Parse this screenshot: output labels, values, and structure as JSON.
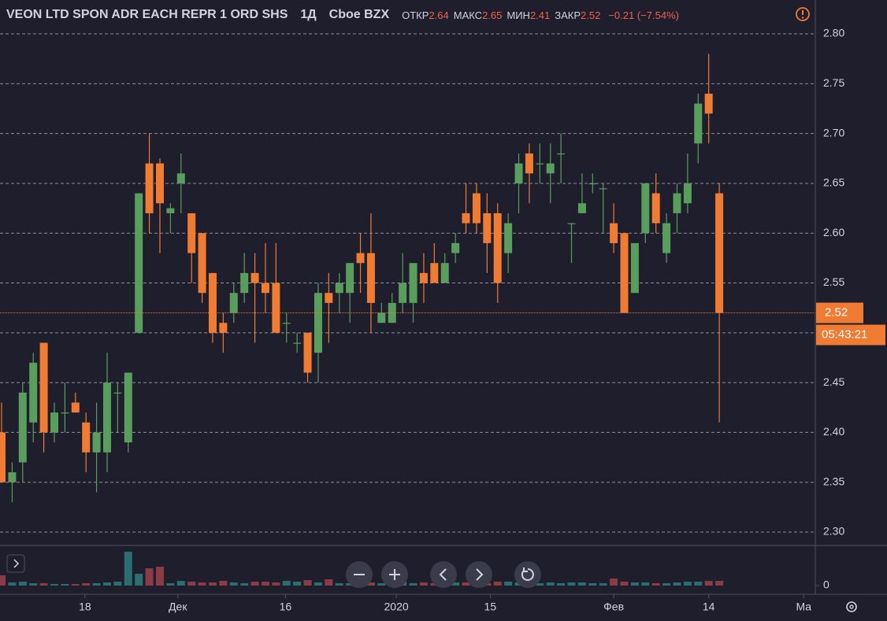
{
  "header": {
    "symbol": "VEON LTD SPON ADR EACH REPR 1 ORD SHS",
    "interval": "1Д",
    "exchange": "Cboe BZX",
    "ohlc": [
      {
        "label": "ОТКР",
        "value": 2.64
      },
      {
        "label": "МАКС",
        "value": 2.65
      },
      {
        "label": "МИН",
        "value": 2.41
      },
      {
        "label": "ЗАКР",
        "value": 2.52
      }
    ],
    "change": "−0.21 (−7.54%)"
  },
  "chart_data": {
    "type": "candlestick",
    "open": [
      2.4,
      2.35,
      2.37,
      2.41,
      2.49,
      2.4,
      2.42,
      2.43,
      2.41,
      2.38,
      2.38,
      2.44,
      2.39,
      2.5,
      2.67,
      2.67,
      2.62,
      2.65,
      2.62,
      2.6,
      2.56,
      2.51,
      2.52,
      2.54,
      2.56,
      2.55,
      2.55,
      2.51,
      2.49,
      2.5,
      2.48,
      2.54,
      2.54,
      2.54,
      2.58,
      2.58,
      2.51,
      2.51,
      2.53,
      2.53,
      2.56,
      2.57,
      2.55,
      2.58,
      2.62,
      2.64,
      2.62,
      2.62,
      2.58,
      2.65,
      2.68,
      2.67,
      2.66,
      2.68,
      2.61,
      2.62,
      2.65,
      2.645,
      2.61,
      2.6,
      2.54,
      2.6,
      2.64,
      2.58,
      2.62,
      2.63,
      2.69,
      2.74,
      2.64
    ],
    "high": [
      2.43,
      2.37,
      2.45,
      2.48,
      2.49,
      2.43,
      2.45,
      2.44,
      2.42,
      2.43,
      2.48,
      2.45,
      2.46,
      2.64,
      2.7,
      2.675,
      2.63,
      2.68,
      2.62,
      2.6,
      2.56,
      2.52,
      2.55,
      2.58,
      2.58,
      2.59,
      2.59,
      2.52,
      2.5,
      2.5,
      2.55,
      2.56,
      2.56,
      2.57,
      2.6,
      2.62,
      2.53,
      2.54,
      2.58,
      2.57,
      2.58,
      2.59,
      2.58,
      2.6,
      2.65,
      2.65,
      2.64,
      2.63,
      2.62,
      2.68,
      2.69,
      2.69,
      2.69,
      2.7,
      2.61,
      2.66,
      2.66,
      2.65,
      2.63,
      2.6,
      2.59,
      2.65,
      2.66,
      2.62,
      2.65,
      2.68,
      2.74,
      2.78,
      2.65
    ],
    "low": [
      2.35,
      2.33,
      2.35,
      2.39,
      2.38,
      2.39,
      2.4,
      2.42,
      2.36,
      2.34,
      2.36,
      2.4,
      2.38,
      2.5,
      2.6,
      2.58,
      2.6,
      2.62,
      2.55,
      2.53,
      2.49,
      2.48,
      2.51,
      2.53,
      2.49,
      2.52,
      2.5,
      2.49,
      2.48,
      2.45,
      2.45,
      2.49,
      2.52,
      2.51,
      2.54,
      2.5,
      2.51,
      2.51,
      2.52,
      2.51,
      2.53,
      2.55,
      2.55,
      2.57,
      2.6,
      2.6,
      2.56,
      2.53,
      2.56,
      2.62,
      2.63,
      2.65,
      2.63,
      2.65,
      2.57,
      2.62,
      2.64,
      2.6,
      2.58,
      2.52,
      2.54,
      2.59,
      2.6,
      2.57,
      2.6,
      2.62,
      2.67,
      2.69,
      2.41
    ],
    "close": [
      2.35,
      2.36,
      2.44,
      2.47,
      2.4,
      2.42,
      2.42,
      2.42,
      2.38,
      2.4,
      2.45,
      2.44,
      2.46,
      2.64,
      2.62,
      2.63,
      2.625,
      2.66,
      2.58,
      2.54,
      2.5,
      2.5,
      2.54,
      2.56,
      2.55,
      2.54,
      2.5,
      2.51,
      2.49,
      2.46,
      2.54,
      2.53,
      2.55,
      2.57,
      2.57,
      2.53,
      2.52,
      2.53,
      2.55,
      2.57,
      2.55,
      2.55,
      2.57,
      2.59,
      2.61,
      2.61,
      2.59,
      2.55,
      2.61,
      2.67,
      2.66,
      2.67,
      2.67,
      2.68,
      2.61,
      2.63,
      2.65,
      2.645,
      2.59,
      2.52,
      2.59,
      2.65,
      2.61,
      2.61,
      2.64,
      2.65,
      2.73,
      2.72,
      2.52
    ],
    "up_color": "#5a9e5d",
    "down_color": "#f07b33",
    "ylim": [
      2.2866,
      2.834
    ],
    "yticks": [
      {
        "value": 2.3,
        "label": "2.30"
      },
      2.35,
      {
        "value": 2.4,
        "label": "2.40"
      },
      2.45,
      {
        "value": 2.5,
        "label": "2.50"
      },
      2.55,
      {
        "value": 2.6,
        "label": "2.60"
      },
      2.65,
      {
        "value": 2.7,
        "label": "2.70"
      },
      2.75,
      {
        "value": 2.8,
        "label": "2.80"
      }
    ],
    "xlim": [
      -0.15,
      77.1
    ],
    "xticks": [
      {
        "value": 7.9,
        "label": "18"
      },
      {
        "value": 16.7,
        "label": "Дек"
      },
      {
        "value": 26.9,
        "label": "16"
      },
      {
        "value": 37.4,
        "label": "2020"
      },
      {
        "value": 46.3,
        "label": "15"
      },
      {
        "value": 58,
        "label": "Фев"
      },
      {
        "value": 67,
        "label": "14"
      },
      {
        "value": 76,
        "label": "Ма"
      }
    ],
    "grid": true,
    "last_price": 2.52,
    "countdown": "05:43:21",
    "volume": {
      "values": [
        13,
        4,
        5,
        3,
        3,
        2,
        2,
        2,
        3,
        3,
        4,
        5,
        43,
        15,
        22,
        24,
        3,
        6,
        5,
        4,
        4,
        6,
        4,
        3,
        5,
        5,
        4,
        6,
        5,
        7,
        4,
        8,
        3,
        3,
        4,
        4,
        3,
        4,
        5,
        3,
        4,
        3,
        3,
        4,
        4,
        4,
        3,
        5,
        5,
        4,
        3,
        3,
        4,
        3,
        4,
        4,
        3,
        3,
        9,
        5,
        4,
        4,
        3,
        3,
        4,
        5,
        5,
        6,
        6
      ],
      "up_color": "#2a6e70",
      "down_color": "#8a3b46",
      "ylim": [
        0,
        50
      ],
      "yticks": [
        0
      ]
    }
  }
}
